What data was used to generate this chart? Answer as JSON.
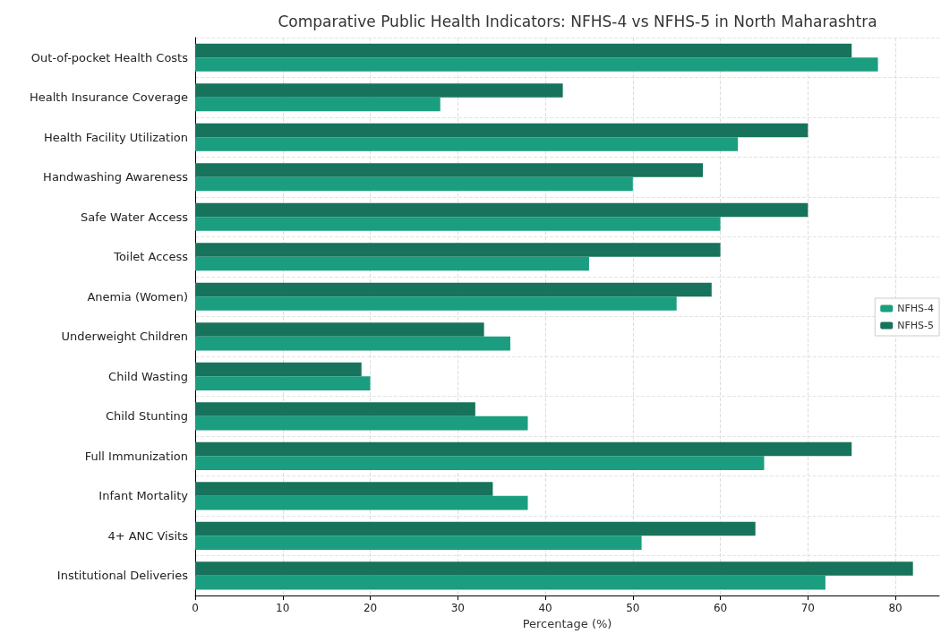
{
  "chart_data": {
    "type": "bar",
    "orientation": "horizontal",
    "title": "Comparative Public Health Indicators: NFHS-4 vs NFHS-5 in North Maharashtra",
    "xlabel": "Percentage (%)",
    "categories": [
      "Out-of-pocket Health Costs",
      "Health Insurance Coverage",
      "Health Facility Utilization",
      "Handwashing Awareness",
      "Safe Water Access",
      "Toilet Access",
      "Anemia (Women)",
      "Underweight Children",
      "Child Wasting",
      "Child Stunting",
      "Full Immunization",
      "Infant Mortality",
      "4+ ANC Visits",
      "Institutional Deliveries"
    ],
    "series": [
      {
        "name": "NFHS-4",
        "color": "#1a9e7f",
        "values": [
          78,
          28,
          62,
          50,
          60,
          45,
          55,
          36,
          20,
          38,
          65,
          38,
          51,
          72
        ]
      },
      {
        "name": "NFHS-5",
        "color": "#17735b",
        "values": [
          75,
          42,
          70,
          58,
          70,
          60,
          59,
          33,
          19,
          32,
          75,
          34,
          64,
          82
        ]
      }
    ],
    "xlim": [
      0,
      85
    ],
    "xticks": [
      0,
      10,
      20,
      30,
      40,
      50,
      60,
      70,
      80
    ],
    "grid": true,
    "legend": "right"
  }
}
